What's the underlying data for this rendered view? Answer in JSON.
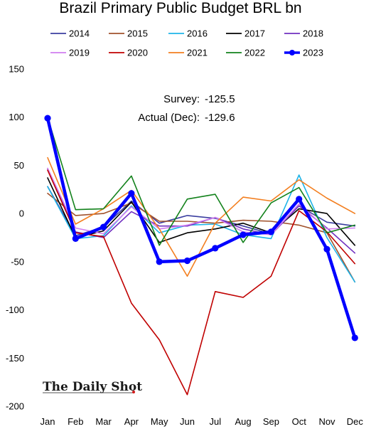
{
  "chart_data": {
    "type": "line",
    "title": "Brazil Primary Public Budget BRL bn",
    "xlabel": "",
    "ylabel": "",
    "categories": [
      "Jan",
      "Feb",
      "Mar",
      "Apr",
      "May",
      "Jun",
      "Jul",
      "Aug",
      "Sep",
      "Oct",
      "Nov",
      "Dec"
    ],
    "ylim": [
      -200,
      150
    ],
    "yticks": [
      150,
      100,
      50,
      0,
      -50,
      -100,
      -150,
      -200
    ],
    "ytick_labels": [
      "150",
      "100",
      "50",
      "0",
      "-50",
      "-100",
      "-150",
      "-200"
    ],
    "grid": false,
    "legend_position": "top",
    "series": [
      {
        "name": "2014",
        "color": "#3b3fa0",
        "width": 1.6,
        "values": [
          28,
          -23,
          -14,
          13,
          -10,
          -2,
          -5,
          -13,
          -21,
          8,
          -9,
          -13
        ]
      },
      {
        "name": "2015",
        "color": "#a0522d",
        "width": 1.6,
        "values": [
          21,
          -2,
          0,
          11,
          -8,
          -8,
          -10,
          -7,
          -8,
          -12,
          -20,
          -71
        ]
      },
      {
        "name": "2016",
        "color": "#1fb4e8",
        "width": 1.6,
        "values": [
          28,
          -26,
          -23,
          8,
          -20,
          -12,
          -11,
          -22,
          -26,
          40,
          -25,
          -71
        ]
      },
      {
        "name": "2017",
        "color": "#000000",
        "width": 1.6,
        "values": [
          37,
          -25,
          -18,
          12,
          -30,
          -20,
          -16,
          -10,
          -20,
          5,
          0,
          -33
        ]
      },
      {
        "name": "2018",
        "color": "#7030c0",
        "width": 1.6,
        "values": [
          46,
          -19,
          -25,
          2,
          -13,
          -13,
          -4,
          -16,
          -22,
          8,
          -15,
          -41
        ]
      },
      {
        "name": "2019",
        "color": "#d17ef0",
        "width": 1.6,
        "values": [
          47,
          -15,
          -21,
          7,
          -16,
          -12,
          -4,
          -19,
          -22,
          10,
          -16,
          -15
        ]
      },
      {
        "name": "2020",
        "color": "#c00000",
        "width": 1.6,
        "values": [
          45,
          -20,
          -24,
          -93,
          -131,
          -188,
          -81,
          -87,
          -65,
          3,
          -19,
          -52
        ]
      },
      {
        "name": "2021",
        "color": "#f37f20",
        "width": 1.6,
        "values": [
          58,
          -11,
          5,
          24,
          -16,
          -65,
          -10,
          17,
          13,
          35,
          16,
          0
        ]
      },
      {
        "name": "2022",
        "color": "#13821c",
        "width": 1.6,
        "values": [
          100,
          4,
          5,
          39,
          -33,
          15,
          20,
          -30,
          11,
          27,
          -20,
          -12
        ]
      },
      {
        "name": "2023",
        "color": "#0000ff",
        "width": 4.5,
        "marker": true,
        "values": [
          99,
          -26,
          -14,
          21,
          -50,
          -49,
          -36,
          -22,
          -19,
          15,
          -37,
          -129
        ]
      }
    ],
    "annotations": [
      {
        "label": "Survey:",
        "value": "-125.5"
      },
      {
        "label": "Actual (Dec):",
        "value": "-129.6"
      }
    ],
    "source_brand": "The Daily Shot"
  }
}
